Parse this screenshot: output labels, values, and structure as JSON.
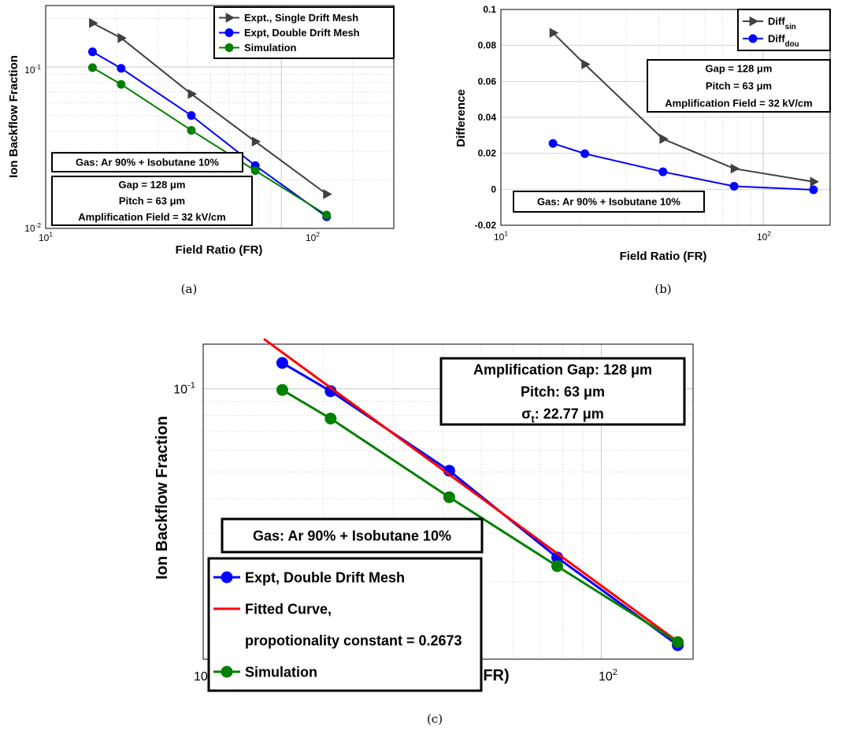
{
  "colors": {
    "single": "#404040",
    "double": "#0000ff",
    "simulation": "#008000",
    "fit": "#ff0000"
  },
  "chart_data": [
    {
      "id": "a",
      "type": "line",
      "caption": "(a)",
      "xscale": "log",
      "yscale": "log",
      "xlim": [
        10,
        300
      ],
      "ylim": [
        0.01,
        0.24
      ],
      "xticks": [
        {
          "base": "10",
          "exp": "1"
        },
        {
          "base": "10",
          "exp": "2"
        }
      ],
      "yticks": [
        {
          "base": "10",
          "exp": "-2"
        },
        {
          "base": "10",
          "exp": "-1"
        }
      ],
      "xlabel": "Field Ratio (FR)",
      "ylabel": "Ion Backflow Fraction",
      "grid": true,
      "legend": "top-right",
      "series": [
        {
          "name": "Expt., Single Drift Mesh",
          "marker": "triangle",
          "color": "#404040",
          "x": [
            15.8,
            20.9,
            41.5,
            77.5,
            155.6
          ],
          "y": [
            0.187,
            0.151,
            0.068,
            0.0345,
            0.0163
          ]
        },
        {
          "name": "Expt, Double Drift Mesh",
          "marker": "circle",
          "color": "#0000ff",
          "x": [
            15.8,
            20.9,
            41.5,
            77.5,
            155.6
          ],
          "y": [
            0.124,
            0.098,
            0.05,
            0.0245,
            0.0118
          ]
        },
        {
          "name": "Simulation",
          "marker": "circle",
          "color": "#008000",
          "x": [
            15.8,
            20.9,
            41.5,
            77.5,
            155.6
          ],
          "y": [
            0.099,
            0.078,
            0.0405,
            0.0228,
            0.0121
          ]
        }
      ],
      "annotations": [
        {
          "lines": [
            "Gas: Ar 90% + Isobutane 10%"
          ]
        },
        {
          "lines": [
            "Gap = 128 μm",
            "Pitch = 63 μm",
            "Amplification Field = 32 kV/cm"
          ]
        }
      ]
    },
    {
      "id": "b",
      "type": "line",
      "caption": "(b)",
      "xscale": "log",
      "yscale": "linear",
      "xlim": [
        10,
        180
      ],
      "ylim": [
        -0.02,
        0.1
      ],
      "xticks": [
        {
          "base": "10",
          "exp": "1"
        },
        {
          "base": "10",
          "exp": "2"
        }
      ],
      "yticks": [
        "-0.02",
        "0",
        "0.02",
        "0.04",
        "0.06",
        "0.08",
        "0.1"
      ],
      "xlabel": "Field Ratio (FR)",
      "ylabel": "Difference",
      "grid": true,
      "legend": "top-right",
      "series": [
        {
          "name": "Diff",
          "sub": "sin",
          "marker": "triangle",
          "color": "#404040",
          "x": [
            15.8,
            20.9,
            41.5,
            77.5,
            155.6
          ],
          "y": [
            0.087,
            0.0695,
            0.028,
            0.0115,
            0.0042
          ]
        },
        {
          "name": "Diff",
          "sub": "dou",
          "marker": "circle",
          "color": "#0000ff",
          "x": [
            15.8,
            20.9,
            41.5,
            77.5,
            155.6
          ],
          "y": [
            0.0255,
            0.0198,
            0.0097,
            0.0017,
            -0.0003
          ]
        }
      ],
      "annotations": [
        {
          "lines": [
            "Gap = 128 μm",
            "Pitch = 63 μm",
            "Amplification Field = 32 kV/cm"
          ]
        },
        {
          "lines": [
            "Gas: Ar 90% + Isobutane 10%"
          ]
        }
      ]
    },
    {
      "id": "c",
      "type": "line",
      "caption": "(c)",
      "xscale": "log",
      "yscale": "log",
      "xlim": [
        10,
        170
      ],
      "ylim": [
        0.0105,
        0.145
      ],
      "xticks": [
        {
          "base": "10",
          "exp": "1"
        },
        {
          "base": "10",
          "exp": "2"
        }
      ],
      "yticks": [
        {
          "base": "10",
          "exp": "-1"
        }
      ],
      "xlabel": "Field Ratio ( FR)",
      "ylabel": "Ion Backflow Fraction",
      "grid": true,
      "legend": "bottom-left",
      "series": [
        {
          "name": "Expt, Double Drift Mesh",
          "marker": "circle",
          "color": "#0000ff",
          "x": [
            15.8,
            20.9,
            41.5,
            77.5,
            155.6
          ],
          "y": [
            0.124,
            0.098,
            0.0505,
            0.0245,
            0.0118
          ]
        },
        {
          "name": "Fitted Curve,",
          "name2": "propotionality constant = 0.2673",
          "marker": "none",
          "color": "#ff0000",
          "x": [
            14.2,
            155.6
          ],
          "y": [
            0.1515,
            0.01215
          ]
        },
        {
          "name": "Simulation",
          "marker": "circle",
          "color": "#008000",
          "x": [
            15.8,
            20.9,
            41.5,
            77.5,
            155.6
          ],
          "y": [
            0.099,
            0.078,
            0.0405,
            0.0228,
            0.0121
          ]
        }
      ],
      "annotations": [
        {
          "lines": [
            "Amplification Gap: 128 μm",
            "Pitch: 63 μm",
            "σt: 22.77 μm"
          ]
        },
        {
          "lines": [
            "Gas: Ar 90% + Isobutane 10%"
          ]
        }
      ]
    }
  ]
}
